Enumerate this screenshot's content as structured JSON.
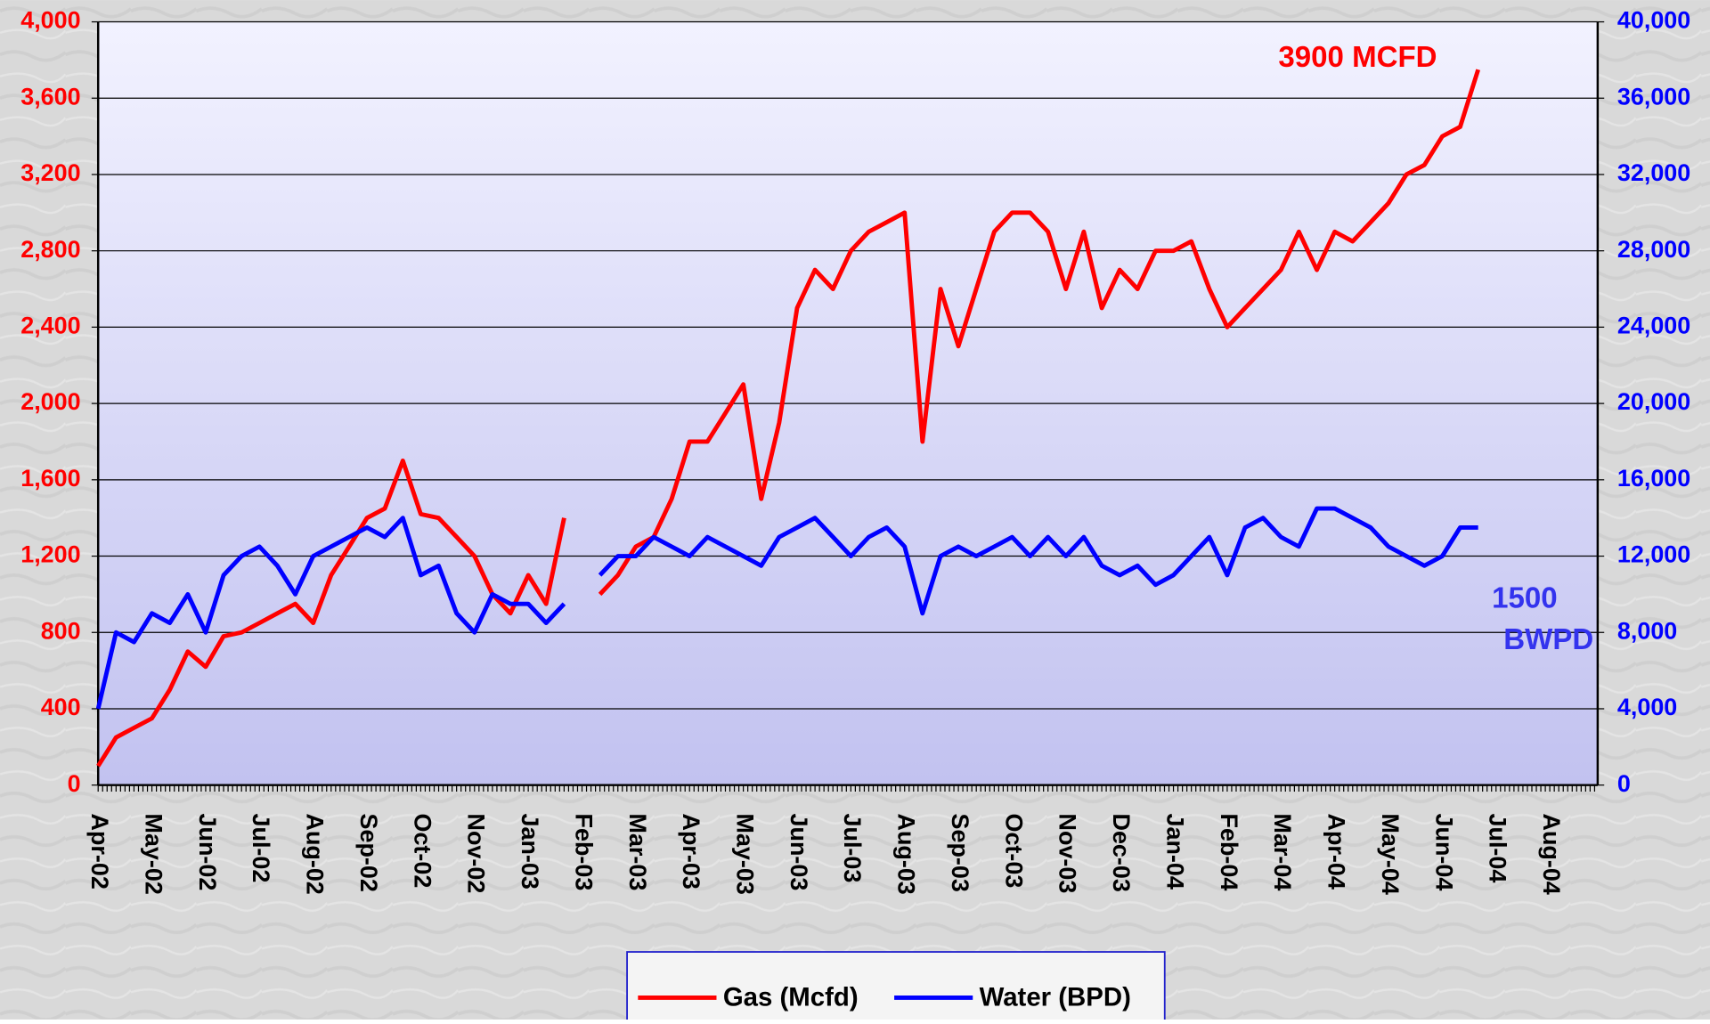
{
  "chart_data": {
    "type": "line",
    "categories": [
      "Apr-02",
      null,
      null,
      "May-02",
      null,
      null,
      "Jun-02",
      null,
      null,
      "Jul-02",
      null,
      null,
      "Aug-02",
      null,
      null,
      "Sep-02",
      null,
      null,
      "Oct-02",
      null,
      null,
      "Nov-02",
      null,
      null,
      "Jan-03",
      null,
      null,
      "Feb-03",
      null,
      null,
      "Mar-03",
      null,
      null,
      "Apr-03",
      null,
      null,
      "May-03",
      null,
      null,
      "Jun-03",
      null,
      null,
      "Jul-03",
      null,
      null,
      "Aug-03",
      null,
      null,
      "Sep-03",
      null,
      null,
      "Oct-03",
      null,
      null,
      "Nov-03",
      null,
      null,
      "Dec-03",
      null,
      null,
      "Jan-04",
      null,
      null,
      "Feb-04",
      null,
      null,
      "Mar-04",
      null,
      null,
      "Apr-04",
      null,
      null,
      "May-04",
      null,
      null,
      "Jun-04",
      null,
      null,
      "Jul-04",
      null,
      null,
      "Aug-04",
      null,
      null
    ],
    "series": [
      {
        "name": "Gas (Mcfd)",
        "color": "#ff0000",
        "values": [
          100,
          250,
          300,
          350,
          500,
          700,
          620,
          780,
          800,
          850,
          900,
          950,
          850,
          1100,
          1250,
          1400,
          1450,
          1700,
          1420,
          1400,
          1300,
          1200,
          1000,
          900,
          1100,
          950,
          1400,
          null,
          1000,
          1100,
          1250,
          1300,
          1500,
          1800,
          1800,
          1950,
          2100,
          1500,
          1900,
          2500,
          2700,
          2600,
          2800,
          2900,
          2950,
          3000,
          1800,
          2600,
          2300,
          2600,
          2900,
          3000,
          3000,
          2900,
          2600,
          2900,
          2500,
          2700,
          2600,
          2800,
          2800,
          2850,
          2600,
          2400,
          2500,
          2600,
          2700,
          2900,
          2700,
          2900,
          2850,
          2950,
          3050,
          3200,
          3250,
          3400,
          3450,
          3750,
          null,
          null,
          null,
          null,
          null,
          null
        ]
      },
      {
        "name": "Water (BPD)",
        "color": "#0000ff",
        "axis": "y2",
        "values": [
          4000,
          8000,
          7500,
          9000,
          8500,
          10000,
          8000,
          11000,
          12000,
          12500,
          11500,
          10000,
          12000,
          12500,
          13000,
          13500,
          13000,
          14000,
          11000,
          11500,
          9000,
          8000,
          10000,
          9500,
          9500,
          8500,
          9500,
          null,
          11000,
          12000,
          12000,
          13000,
          12500,
          12000,
          13000,
          12500,
          12000,
          11500,
          13000,
          13500,
          14000,
          13000,
          12000,
          13000,
          13500,
          12500,
          9000,
          12000,
          12500,
          12000,
          12500,
          13000,
          12000,
          13000,
          12000,
          13000,
          11500,
          11000,
          11500,
          10500,
          11000,
          12000,
          13000,
          11000,
          13500,
          14000,
          13000,
          12500,
          14500,
          14500,
          14000,
          13500,
          12500,
          12000,
          11500,
          12000,
          13500,
          13500,
          null,
          null,
          null,
          null,
          null,
          null
        ]
      }
    ],
    "ylim": [
      0,
      4000
    ],
    "yticks": [
      0,
      400,
      800,
      {
        "value": 1200,
        "label": "1,200"
      },
      {
        "value": 1600,
        "label": "1,600"
      },
      {
        "value": 2000,
        "label": "2,000"
      },
      {
        "value": 2400,
        "label": "2,400"
      },
      {
        "value": 2800,
        "label": "2,800"
      },
      {
        "value": 3200,
        "label": "3,200"
      },
      {
        "value": 3600,
        "label": "3,600"
      },
      {
        "value": 4000,
        "label": "4,000"
      }
    ],
    "y2lim": [
      0,
      40000
    ],
    "y2ticks": [
      0,
      {
        "value": 4000,
        "label": "4,000"
      },
      {
        "value": 8000,
        "label": "8,000"
      },
      {
        "value": 12000,
        "label": "12,000"
      },
      {
        "value": 16000,
        "label": "16,000"
      },
      {
        "value": 20000,
        "label": "20,000"
      },
      {
        "value": 24000,
        "label": "24,000"
      },
      {
        "value": 28000,
        "label": "28,000"
      },
      {
        "value": 32000,
        "label": "32,000"
      },
      {
        "value": 36000,
        "label": "36,000"
      },
      {
        "value": 40000,
        "label": "40,000"
      }
    ],
    "grid": true,
    "legend": "bottom",
    "annotations": [
      {
        "text": "3900 MCFD",
        "color": "#ff0000"
      },
      {
        "lines": [
          "1500",
          "BWPD"
        ],
        "color": "#3333ee"
      }
    ]
  }
}
